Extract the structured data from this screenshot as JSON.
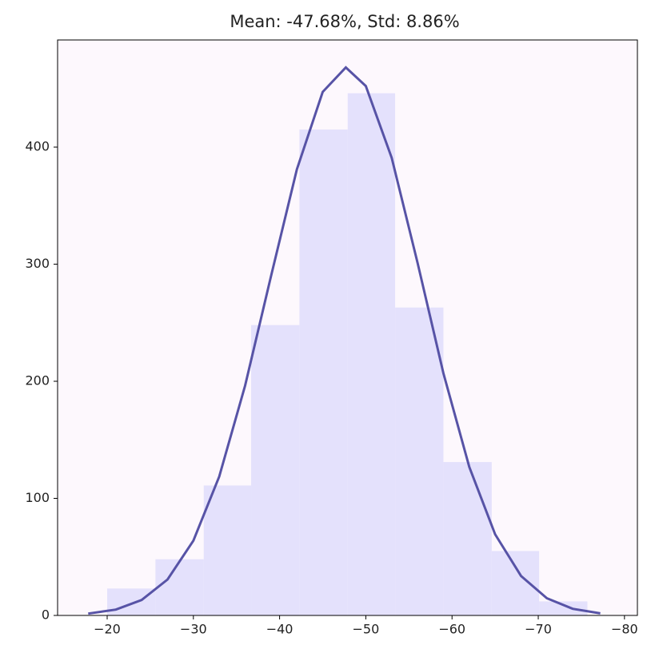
{
  "chart_data": {
    "type": "histogram",
    "title": "Mean: -47.68%, Std: 8.86%",
    "bins": [
      -20.0,
      -25.6,
      -31.2,
      -36.7,
      -42.3,
      -47.9,
      -53.4,
      -59.0,
      -64.6,
      -70.1,
      -75.7
    ],
    "counts": [
      23,
      48,
      111,
      248,
      415,
      446,
      263,
      131,
      55,
      12
    ],
    "color": "#e4e1fc",
    "background": "#fdf8fd",
    "curve": {
      "color": "#5753a6",
      "x": [
        -17.8,
        -21,
        -24,
        -27,
        -30,
        -33,
        -36,
        -39,
        -42,
        -45,
        -47.68,
        -50,
        -53,
        -56,
        -59,
        -62,
        -65,
        -68,
        -71,
        -74,
        -77.2
      ],
      "y": [
        1.6,
        5.0,
        13.2,
        30.7,
        63.9,
        118.6,
        196.3,
        289.6,
        381.0,
        447.1,
        468,
        452.2,
        390.8,
        301.2,
        206.9,
        126.8,
        69.3,
        33.7,
        14.7,
        5.7,
        1.8
      ]
    },
    "xlim": [
      -14.25,
      -81.5
    ],
    "xticks": [
      {
        "value": -20,
        "label": "−20"
      },
      {
        "value": -30,
        "label": "−30"
      },
      {
        "value": -40,
        "label": "−40"
      },
      {
        "value": -50,
        "label": "−50"
      },
      {
        "value": -60,
        "label": "−60"
      },
      {
        "value": -70,
        "label": "−70"
      },
      {
        "value": -80,
        "label": "−80"
      }
    ],
    "ylim": [
      0,
      491.5
    ],
    "yticks": [
      0,
      100,
      200,
      300,
      400
    ]
  }
}
